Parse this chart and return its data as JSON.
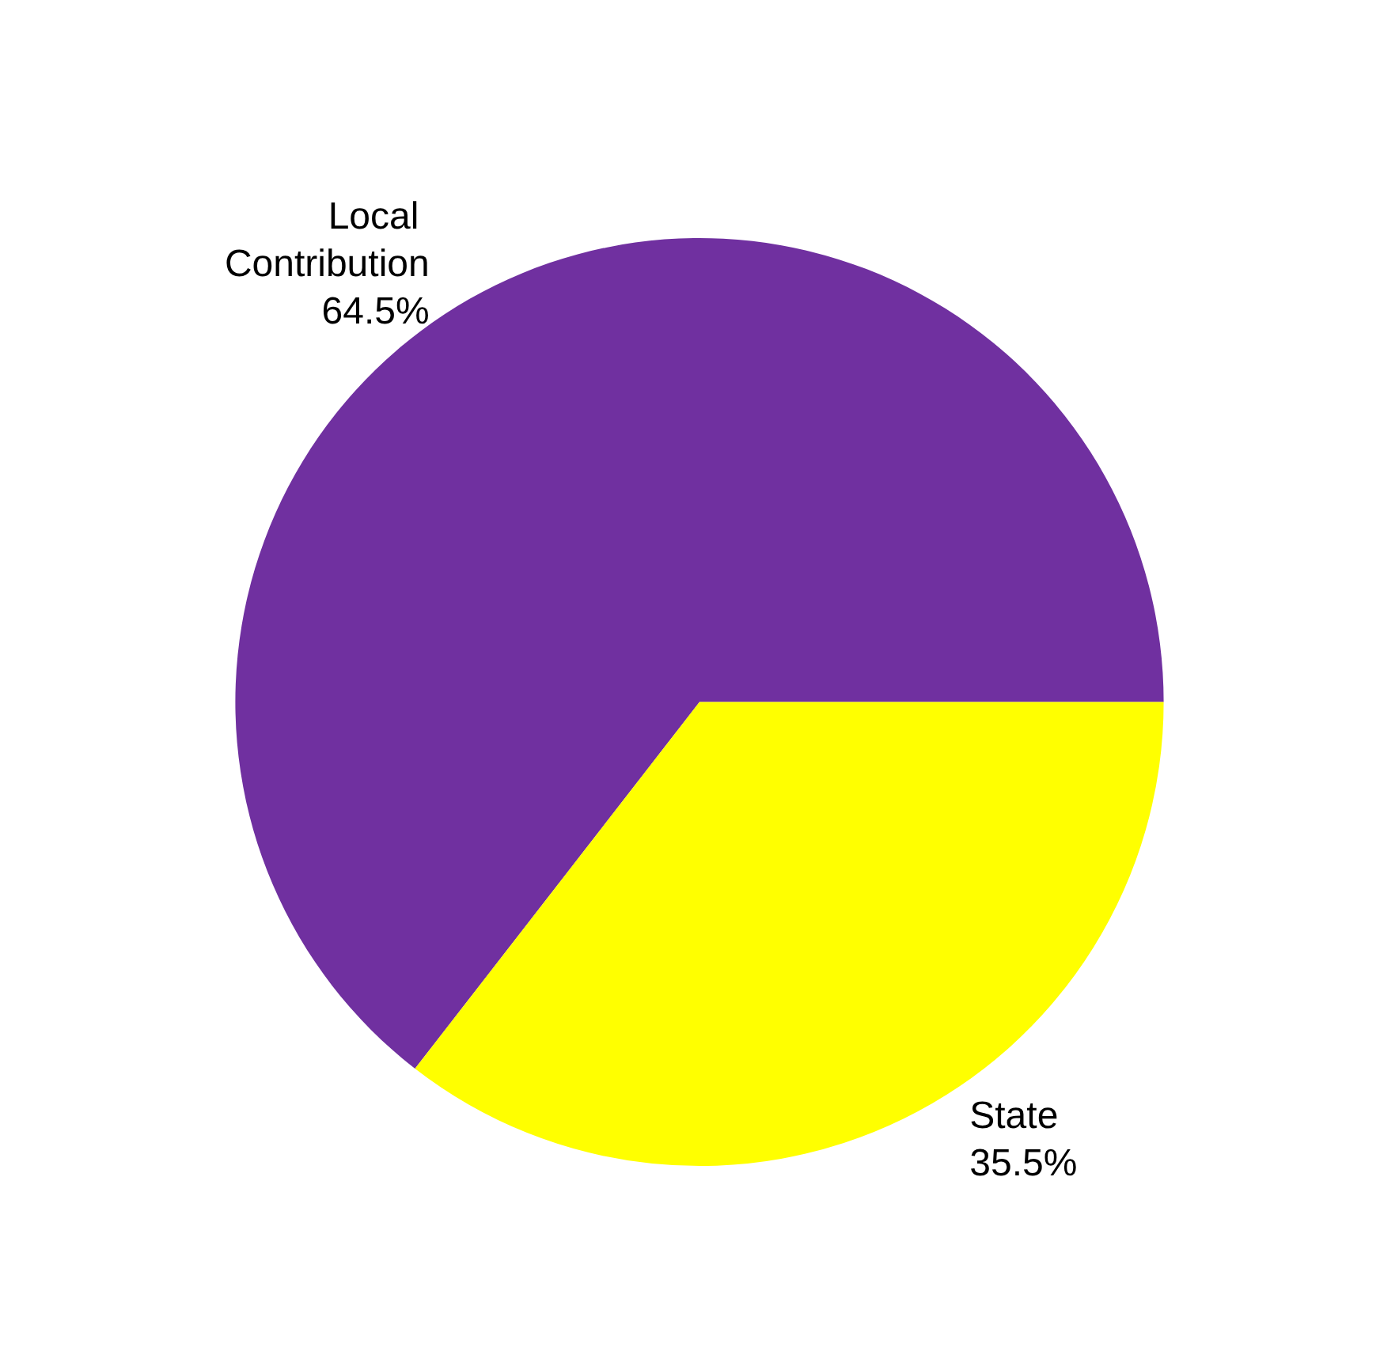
{
  "chart_data": {
    "type": "pie",
    "categories": [
      "Local Contribution",
      "State"
    ],
    "values": [
      64.5,
      35.5
    ],
    "colors": [
      "#7030a0",
      "#ffff00"
    ],
    "value_labels": [
      "64.5%",
      "35.5%"
    ]
  }
}
